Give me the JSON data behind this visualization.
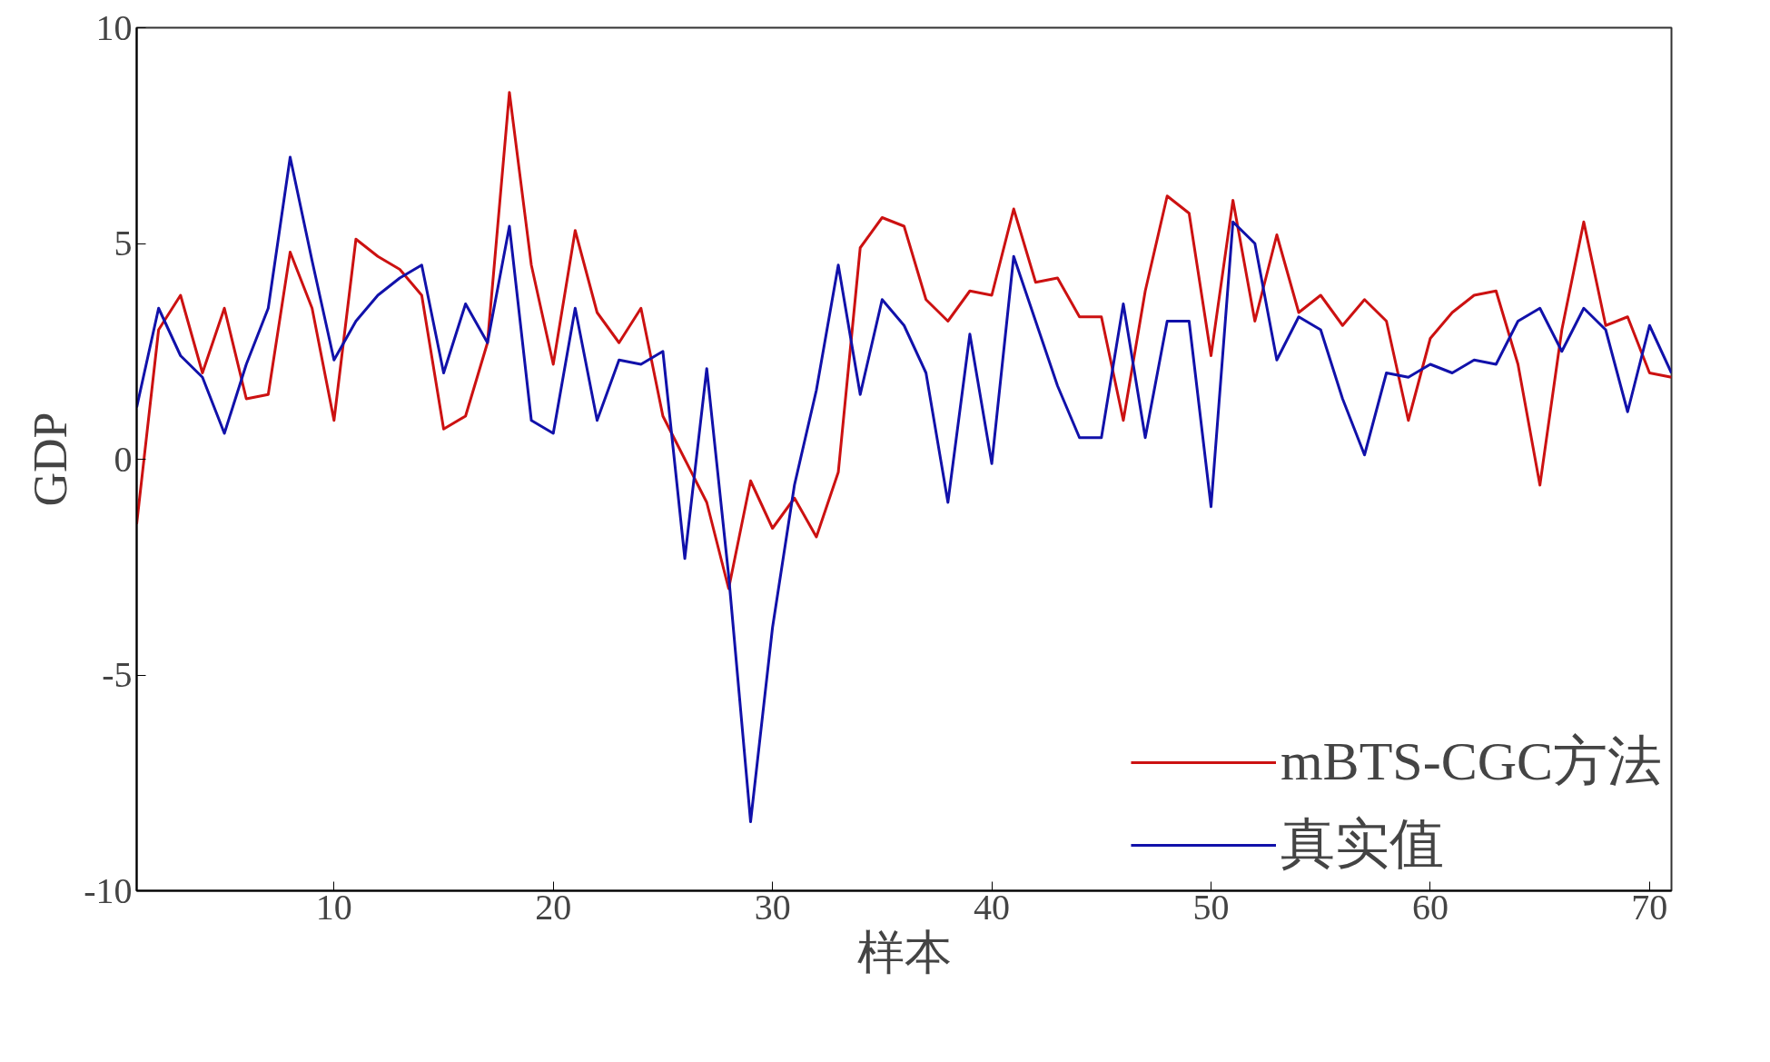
{
  "chart_data": {
    "type": "line",
    "xlabel": "样本",
    "ylabel": "GDP",
    "xlim": [
      1,
      71
    ],
    "xticks": [
      10,
      20,
      30,
      40,
      50,
      60,
      70
    ],
    "ylim": [
      -10,
      10
    ],
    "yticks": [
      -10,
      -5,
      0,
      5,
      10
    ],
    "grid": false,
    "legend": "bottom right",
    "line_style": "solid",
    "x": [
      1,
      2,
      3,
      4,
      5,
      6,
      7,
      8,
      9,
      10,
      11,
      12,
      13,
      14,
      15,
      16,
      17,
      18,
      19,
      20,
      21,
      22,
      23,
      24,
      25,
      26,
      27,
      28,
      29,
      30,
      31,
      32,
      33,
      34,
      35,
      36,
      37,
      38,
      39,
      40,
      41,
      42,
      43,
      44,
      45,
      46,
      47,
      48,
      49,
      50,
      51,
      52,
      53,
      54,
      55,
      56,
      57,
      58,
      59,
      60,
      61,
      62,
      63,
      64,
      65,
      66,
      67,
      68,
      69,
      70,
      71
    ],
    "series": [
      {
        "name": "mBTS-CGC方法",
        "color": "#cc1111",
        "values": [
          -1.5,
          3.0,
          3.8,
          2.0,
          3.5,
          1.4,
          1.5,
          4.8,
          3.5,
          0.9,
          5.1,
          4.7,
          4.4,
          3.8,
          0.7,
          1.0,
          2.7,
          8.5,
          4.5,
          2.2,
          5.3,
          3.4,
          2.7,
          3.5,
          1.0,
          0.0,
          -1.0,
          -3.0,
          -0.5,
          -1.6,
          -0.9,
          -1.8,
          -0.3,
          4.9,
          5.6,
          5.4,
          3.7,
          3.2,
          3.9,
          3.8,
          5.8,
          4.1,
          4.2,
          3.3,
          3.3,
          0.9,
          3.9,
          6.1,
          5.7,
          2.4,
          6.0,
          3.2,
          5.2,
          3.4,
          3.8,
          3.1,
          3.7,
          3.2,
          0.9,
          2.8,
          3.4,
          3.8,
          3.9,
          2.2,
          -0.6,
          3.0,
          5.5,
          3.1,
          3.3,
          2.0,
          1.9
        ]
      },
      {
        "name": "真实值",
        "color": "#1111aa",
        "values": [
          1.2,
          3.5,
          2.4,
          1.9,
          0.6,
          2.2,
          3.5,
          7.0,
          4.6,
          2.3,
          3.2,
          3.8,
          4.2,
          4.5,
          2.0,
          3.6,
          2.7,
          5.4,
          0.9,
          0.6,
          3.5,
          0.9,
          2.3,
          2.2,
          2.5,
          -2.3,
          2.1,
          -2.7,
          -8.4,
          -3.9,
          -0.6,
          1.6,
          4.5,
          1.5,
          3.7,
          3.1,
          2.0,
          -1.0,
          2.9,
          -0.1,
          4.7,
          3.2,
          1.7,
          0.5,
          0.5,
          3.6,
          0.5,
          3.2,
          3.2,
          -1.1,
          5.5,
          5.0,
          2.3,
          3.3,
          3.0,
          1.4,
          0.1,
          2.0,
          1.9,
          2.2,
          2.0,
          2.3,
          2.2,
          3.2,
          3.5,
          2.5,
          3.5,
          3.0,
          1.1,
          3.1,
          2.0
        ]
      }
    ]
  }
}
